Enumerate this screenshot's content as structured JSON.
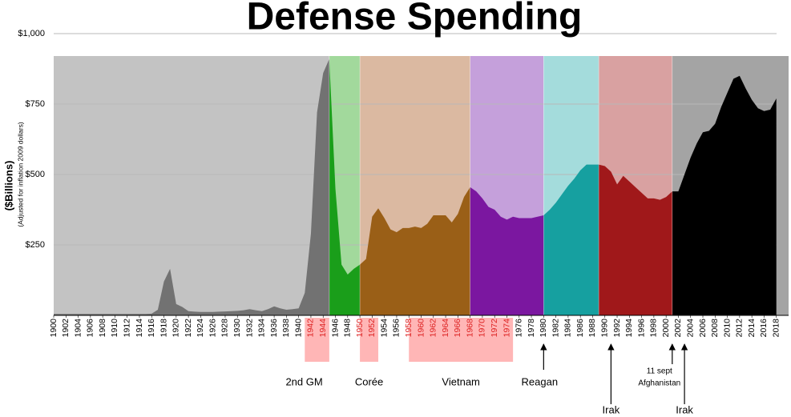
{
  "chart_data": {
    "type": "area",
    "title": "Defense Spending",
    "y_label": "($Billions)",
    "y_sublabel": "(Adjusted for inflation 2009 dollars)",
    "x": [
      1900,
      1901,
      1902,
      1903,
      1904,
      1905,
      1906,
      1907,
      1908,
      1909,
      1910,
      1911,
      1912,
      1913,
      1914,
      1915,
      1916,
      1917,
      1918,
      1919,
      1920,
      1921,
      1922,
      1923,
      1924,
      1925,
      1926,
      1927,
      1928,
      1929,
      1930,
      1931,
      1932,
      1933,
      1934,
      1935,
      1936,
      1937,
      1938,
      1939,
      1940,
      1941,
      1942,
      1943,
      1944,
      1945,
      1946,
      1947,
      1948,
      1949,
      1950,
      1951,
      1952,
      1953,
      1954,
      1955,
      1956,
      1957,
      1958,
      1959,
      1960,
      1961,
      1962,
      1963,
      1964,
      1965,
      1966,
      1967,
      1968,
      1969,
      1970,
      1971,
      1972,
      1973,
      1974,
      1975,
      1976,
      1977,
      1978,
      1979,
      1980,
      1981,
      1982,
      1983,
      1984,
      1985,
      1986,
      1987,
      1988,
      1989,
      1990,
      1991,
      1992,
      1993,
      1994,
      1995,
      1996,
      1997,
      1998,
      1999,
      2000,
      2001,
      2002,
      2003,
      2004,
      2005,
      2006,
      2007,
      2008,
      2009,
      2010,
      2011,
      2012,
      2013,
      2014,
      2015,
      2016,
      2017,
      2018
    ],
    "values": [
      5,
      5,
      5,
      5,
      5,
      5,
      5,
      5,
      5,
      5,
      5,
      5,
      5,
      5,
      5,
      5,
      6,
      20,
      120,
      165,
      40,
      30,
      15,
      13,
      12,
      12,
      12,
      13,
      14,
      15,
      16,
      18,
      22,
      18,
      15,
      22,
      32,
      25,
      20,
      22,
      25,
      80,
      290,
      720,
      860,
      910,
      450,
      180,
      145,
      165,
      180,
      200,
      350,
      380,
      345,
      305,
      295,
      310,
      310,
      315,
      310,
      325,
      355,
      355,
      355,
      330,
      360,
      420,
      455,
      440,
      415,
      385,
      375,
      350,
      340,
      350,
      345,
      345,
      345,
      350,
      355,
      375,
      400,
      430,
      460,
      485,
      515,
      535,
      535,
      535,
      530,
      510,
      465,
      495,
      475,
      455,
      435,
      415,
      415,
      410,
      420,
      440,
      440,
      500,
      560,
      610,
      650,
      655,
      680,
      740,
      790,
      840,
      850,
      805,
      765,
      735,
      725,
      730,
      770
    ],
    "xlim": [
      1900,
      2020
    ],
    "ylim": [
      0,
      1000
    ],
    "xticks": [
      1900,
      1902,
      1904,
      1906,
      1908,
      1910,
      1912,
      1914,
      1916,
      1918,
      1920,
      1922,
      1924,
      1926,
      1928,
      1930,
      1932,
      1934,
      1936,
      1938,
      1940,
      1942,
      1944,
      1946,
      1948,
      1950,
      1952,
      1954,
      1956,
      1958,
      1960,
      1962,
      1964,
      1966,
      1968,
      1970,
      1972,
      1974,
      1976,
      1978,
      1980,
      1982,
      1984,
      1986,
      1988,
      1990,
      1992,
      1994,
      1996,
      1998,
      2000,
      2002,
      2004,
      2006,
      2008,
      2010,
      2012,
      2014,
      2016,
      2018
    ],
    "yticks": [
      {
        "value": 250,
        "label": "$250"
      },
      {
        "value": 500,
        "label": "$500"
      },
      {
        "value": 750,
        "label": "$750"
      },
      {
        "value": 1000,
        "label": "$1,000"
      }
    ],
    "grid": true,
    "eras": [
      {
        "start": 1900,
        "end": 1945,
        "band_color": "#c3c3c3",
        "color": "#727272"
      },
      {
        "start": 1945,
        "end": 1950,
        "band_color": "#a2d99c",
        "color": "#1a9e1a"
      },
      {
        "start": 1950,
        "end": 1968,
        "band_color": "#dbb9a1",
        "color": "#9a5f17"
      },
      {
        "start": 1968,
        "end": 1980,
        "band_color": "#c5a0db",
        "color": "#7b17a0"
      },
      {
        "start": 1980,
        "end": 1989,
        "band_color": "#a4dcdc",
        "color": "#16a0a0"
      },
      {
        "start": 1989,
        "end": 2001,
        "band_color": "#d9a1a1",
        "color": "#a0181a"
      },
      {
        "start": 2001,
        "end": 2020,
        "band_color": "#a4a4a4",
        "color": "#000000"
      }
    ],
    "wars": [
      {
        "name": "2nd GM",
        "start": 1941,
        "end": 1945,
        "color": "#ffb6b6"
      },
      {
        "name": "Corée",
        "start": 1950,
        "end": 1953,
        "color": "#ffb6b6"
      },
      {
        "name": "Vietnam",
        "start": 1958,
        "end": 1975,
        "color": "#ffb6b6"
      }
    ],
    "events": [
      {
        "label": [
          "Reagan"
        ],
        "year": 1980
      },
      {
        "label": [
          "Irak"
        ],
        "year": 1991
      },
      {
        "label": [
          "11 sept",
          "Afghanistan"
        ],
        "year": 2001
      },
      {
        "label": [
          "Irak"
        ],
        "year": 2003
      }
    ]
  }
}
